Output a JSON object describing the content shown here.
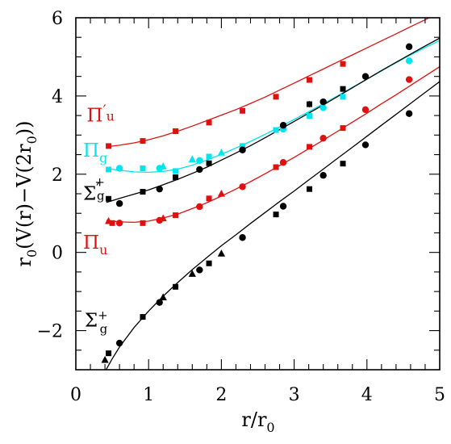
{
  "chart_data": {
    "type": "scatter",
    "title": "",
    "xlabel": {
      "main": "r/r",
      "sub": "0"
    },
    "ylabel": {
      "prefix": "r",
      "prefix_sub": "0",
      "body": "(V(r)−V(2r",
      "body_sub": "0",
      "suffix": "))"
    },
    "xlim": [
      0,
      5
    ],
    "ylim": [
      -3,
      6
    ],
    "xticks": [
      "0",
      "1",
      "2",
      "3",
      "4",
      "5"
    ],
    "yticks": [
      "−2",
      "0",
      "2",
      "4",
      "6"
    ],
    "grid": false,
    "legend": "none",
    "series": [
      {
        "label": {
          "main": "Π",
          "sub": "u",
          "prime": "′"
        },
        "color": "#e01010",
        "curve": [
          [
            0.42,
            2.7
          ],
          [
            0.6,
            2.74
          ],
          [
            0.8,
            2.8
          ],
          [
            1.0,
            2.88
          ],
          [
            1.2,
            2.98
          ],
          [
            1.4,
            3.1
          ],
          [
            1.6,
            3.23
          ],
          [
            1.8,
            3.37
          ],
          [
            2.0,
            3.51
          ],
          [
            2.2,
            3.65
          ],
          [
            2.4,
            3.81
          ],
          [
            2.6,
            3.97
          ],
          [
            2.8,
            4.15
          ],
          [
            3.0,
            4.33
          ],
          [
            3.2,
            4.51
          ],
          [
            3.4,
            4.69
          ],
          [
            3.6,
            4.87
          ],
          [
            3.8,
            5.05
          ],
          [
            4.0,
            5.23
          ],
          [
            4.2,
            5.41
          ],
          [
            4.4,
            5.59
          ],
          [
            4.6,
            5.77
          ],
          [
            4.8,
            5.95
          ],
          [
            5.0,
            6.13
          ]
        ],
        "points": [
          {
            "x": 0.45,
            "y": 2.72,
            "m": "square"
          },
          {
            "x": 0.92,
            "y": 2.85,
            "m": "square"
          },
          {
            "x": 1.37,
            "y": 3.1,
            "m": "square"
          },
          {
            "x": 1.83,
            "y": 3.32,
            "m": "square"
          },
          {
            "x": 2.29,
            "y": 3.62,
            "m": "square"
          },
          {
            "x": 2.75,
            "y": 3.98,
            "m": "square"
          },
          {
            "x": 3.21,
            "y": 4.41,
            "m": "square"
          },
          {
            "x": 3.67,
            "y": 4.82,
            "m": "square"
          }
        ]
      },
      {
        "label": {
          "main": "Π",
          "sub": "g",
          "prime": ""
        },
        "color": "#00e5ee",
        "curve": [
          [
            0.42,
            2.15
          ],
          [
            0.6,
            2.1
          ],
          [
            0.8,
            2.06
          ],
          [
            1.0,
            2.05
          ],
          [
            1.2,
            2.07
          ],
          [
            1.4,
            2.13
          ],
          [
            1.6,
            2.23
          ],
          [
            1.8,
            2.36
          ],
          [
            2.0,
            2.51
          ],
          [
            2.2,
            2.67
          ],
          [
            2.4,
            2.84
          ],
          [
            2.6,
            3.02
          ],
          [
            2.8,
            3.21
          ],
          [
            3.0,
            3.4
          ],
          [
            3.2,
            3.6
          ],
          [
            3.4,
            3.8
          ],
          [
            3.6,
            4.01
          ],
          [
            3.8,
            4.22
          ],
          [
            4.0,
            4.43
          ],
          [
            4.2,
            4.64
          ],
          [
            4.4,
            4.85
          ],
          [
            4.6,
            5.05
          ],
          [
            4.8,
            5.24
          ],
          [
            5.0,
            5.42
          ]
        ],
        "points": [
          {
            "x": 0.45,
            "y": 2.12,
            "m": "square"
          },
          {
            "x": 0.6,
            "y": 2.15,
            "m": "circle"
          },
          {
            "x": 0.92,
            "y": 2.15,
            "m": "square"
          },
          {
            "x": 1.15,
            "y": 2.15,
            "m": "circle"
          },
          {
            "x": 1.2,
            "y": 2.2,
            "m": "triangle"
          },
          {
            "x": 1.37,
            "y": 2.08,
            "m": "square"
          },
          {
            "x": 1.6,
            "y": 2.38,
            "m": "triangle"
          },
          {
            "x": 1.7,
            "y": 2.35,
            "m": "circle"
          },
          {
            "x": 1.83,
            "y": 2.45,
            "m": "square"
          },
          {
            "x": 2.0,
            "y": 2.55,
            "m": "triangle"
          },
          {
            "x": 2.29,
            "y": 2.72,
            "m": "square"
          },
          {
            "x": 2.75,
            "y": 3.13,
            "m": "square"
          },
          {
            "x": 2.85,
            "y": 3.15,
            "m": "circle"
          },
          {
            "x": 3.21,
            "y": 3.49,
            "m": "square"
          },
          {
            "x": 3.4,
            "y": 3.7,
            "m": "circle"
          },
          {
            "x": 3.67,
            "y": 3.98,
            "m": "square"
          },
          {
            "x": 4.58,
            "y": 4.9,
            "m": "circle"
          }
        ]
      },
      {
        "label": {
          "main": "Σ",
          "sub": "g",
          "prime": "′",
          "sup": "+"
        },
        "color": "#000000",
        "curve": [
          [
            0.42,
            1.28
          ],
          [
            0.6,
            1.38
          ],
          [
            0.8,
            1.49
          ],
          [
            1.0,
            1.6
          ],
          [
            1.2,
            1.73
          ],
          [
            1.4,
            1.87
          ],
          [
            1.6,
            2.02
          ],
          [
            1.8,
            2.18
          ],
          [
            2.0,
            2.36
          ],
          [
            2.2,
            2.54
          ],
          [
            2.4,
            2.73
          ],
          [
            2.6,
            2.93
          ],
          [
            2.8,
            3.14
          ],
          [
            3.0,
            3.35
          ],
          [
            3.2,
            3.56
          ],
          [
            3.4,
            3.77
          ],
          [
            3.6,
            3.99
          ],
          [
            3.8,
            4.21
          ],
          [
            4.0,
            4.43
          ],
          [
            4.2,
            4.65
          ],
          [
            4.4,
            4.86
          ],
          [
            4.6,
            5.07
          ],
          [
            4.8,
            5.28
          ],
          [
            5.0,
            5.48
          ]
        ],
        "points": [
          {
            "x": 0.45,
            "y": 1.37,
            "m": "square"
          },
          {
            "x": 0.6,
            "y": 1.25,
            "m": "circle"
          },
          {
            "x": 0.92,
            "y": 1.55,
            "m": "square"
          },
          {
            "x": 1.15,
            "y": 1.62,
            "m": "circle"
          },
          {
            "x": 1.37,
            "y": 1.92,
            "m": "square"
          },
          {
            "x": 1.7,
            "y": 2.12,
            "m": "circle"
          },
          {
            "x": 1.83,
            "y": 2.28,
            "m": "square"
          },
          {
            "x": 2.29,
            "y": 2.62,
            "m": "circle"
          },
          {
            "x": 2.85,
            "y": 3.25,
            "m": "circle"
          },
          {
            "x": 3.21,
            "y": 3.79,
            "m": "square"
          },
          {
            "x": 3.4,
            "y": 3.85,
            "m": "circle"
          },
          {
            "x": 3.67,
            "y": 4.18,
            "m": "square"
          },
          {
            "x": 3.98,
            "y": 4.5,
            "m": "circle"
          },
          {
            "x": 4.58,
            "y": 5.26,
            "m": "circle"
          }
        ]
      },
      {
        "label": {
          "main": "Π",
          "sub": "u",
          "prime": ""
        },
        "color": "#e01010",
        "curve": [
          [
            0.42,
            0.82
          ],
          [
            0.6,
            0.78
          ],
          [
            0.8,
            0.77
          ],
          [
            1.0,
            0.8
          ],
          [
            1.2,
            0.88
          ],
          [
            1.4,
            0.98
          ],
          [
            1.6,
            1.12
          ],
          [
            1.8,
            1.27
          ],
          [
            2.0,
            1.44
          ],
          [
            2.2,
            1.62
          ],
          [
            2.4,
            1.81
          ],
          [
            2.6,
            2.01
          ],
          [
            2.8,
            2.22
          ],
          [
            3.0,
            2.43
          ],
          [
            3.2,
            2.65
          ],
          [
            3.4,
            2.87
          ],
          [
            3.6,
            3.1
          ],
          [
            3.8,
            3.33
          ],
          [
            4.0,
            3.56
          ],
          [
            4.2,
            3.8
          ],
          [
            4.4,
            4.03
          ],
          [
            4.6,
            4.27
          ],
          [
            4.8,
            4.51
          ],
          [
            5.0,
            4.75
          ]
        ],
        "points": [
          {
            "x": 0.45,
            "y": 0.8,
            "m": "triangle"
          },
          {
            "x": 0.5,
            "y": 0.75,
            "m": "square"
          },
          {
            "x": 0.6,
            "y": 0.75,
            "m": "circle"
          },
          {
            "x": 0.92,
            "y": 0.75,
            "m": "square"
          },
          {
            "x": 1.15,
            "y": 0.82,
            "m": "circle"
          },
          {
            "x": 1.2,
            "y": 0.87,
            "m": "triangle"
          },
          {
            "x": 1.37,
            "y": 0.95,
            "m": "square"
          },
          {
            "x": 1.7,
            "y": 1.17,
            "m": "circle"
          },
          {
            "x": 1.83,
            "y": 1.38,
            "m": "square"
          },
          {
            "x": 2.0,
            "y": 1.5,
            "m": "triangle"
          },
          {
            "x": 2.29,
            "y": 1.68,
            "m": "circle"
          },
          {
            "x": 2.75,
            "y": 2.18,
            "m": "square"
          },
          {
            "x": 2.85,
            "y": 2.3,
            "m": "circle"
          },
          {
            "x": 3.21,
            "y": 2.7,
            "m": "square"
          },
          {
            "x": 3.4,
            "y": 2.92,
            "m": "circle"
          },
          {
            "x": 3.67,
            "y": 3.18,
            "m": "square"
          },
          {
            "x": 3.98,
            "y": 3.65,
            "m": "circle"
          },
          {
            "x": 4.58,
            "y": 4.42,
            "m": "circle"
          }
        ]
      },
      {
        "label": {
          "main": "Σ",
          "sub": "g",
          "prime": "",
          "sup": "+"
        },
        "color": "#000000",
        "curve": [
          [
            0.4,
            -3.05
          ],
          [
            0.5,
            -2.72
          ],
          [
            0.6,
            -2.42
          ],
          [
            0.8,
            -1.92
          ],
          [
            1.0,
            -1.5
          ],
          [
            1.2,
            -1.12
          ],
          [
            1.4,
            -0.77
          ],
          [
            1.6,
            -0.44
          ],
          [
            1.8,
            -0.13
          ],
          [
            2.0,
            0.17
          ],
          [
            2.2,
            0.45
          ],
          [
            2.4,
            0.74
          ],
          [
            2.6,
            1.02
          ],
          [
            2.8,
            1.3
          ],
          [
            3.0,
            1.57
          ],
          [
            3.2,
            1.85
          ],
          [
            3.4,
            2.13
          ],
          [
            3.6,
            2.41
          ],
          [
            3.8,
            2.69
          ],
          [
            4.0,
            2.97
          ],
          [
            4.2,
            3.25
          ],
          [
            4.4,
            3.53
          ],
          [
            4.6,
            3.81
          ],
          [
            4.8,
            4.09
          ],
          [
            5.0,
            4.37
          ]
        ],
        "points": [
          {
            "x": 0.4,
            "y": -2.75,
            "m": "triangle"
          },
          {
            "x": 0.45,
            "y": -2.58,
            "m": "square"
          },
          {
            "x": 0.6,
            "y": -2.32,
            "m": "circle"
          },
          {
            "x": 0.92,
            "y": -1.65,
            "m": "square"
          },
          {
            "x": 1.15,
            "y": -1.28,
            "m": "circle"
          },
          {
            "x": 1.2,
            "y": -1.15,
            "m": "triangle"
          },
          {
            "x": 1.37,
            "y": -0.88,
            "m": "square"
          },
          {
            "x": 1.6,
            "y": -0.55,
            "m": "triangle"
          },
          {
            "x": 1.7,
            "y": -0.45,
            "m": "circle"
          },
          {
            "x": 1.83,
            "y": -0.28,
            "m": "square"
          },
          {
            "x": 2.0,
            "y": -0.03,
            "m": "triangle"
          },
          {
            "x": 2.29,
            "y": 0.38,
            "m": "circle"
          },
          {
            "x": 2.75,
            "y": 0.97,
            "m": "square"
          },
          {
            "x": 2.85,
            "y": 1.18,
            "m": "circle"
          },
          {
            "x": 3.21,
            "y": 1.62,
            "m": "square"
          },
          {
            "x": 3.4,
            "y": 1.97,
            "m": "circle"
          },
          {
            "x": 3.67,
            "y": 2.27,
            "m": "square"
          },
          {
            "x": 3.98,
            "y": 2.75,
            "m": "circle"
          },
          {
            "x": 4.58,
            "y": 3.55,
            "m": "circle"
          }
        ]
      }
    ],
    "series_label_anchors": [
      {
        "x": 0.15,
        "y": 3.35
      },
      {
        "x": 0.1,
        "y": 2.45
      },
      {
        "x": 0.1,
        "y": 1.35
      },
      {
        "x": 0.1,
        "y": 0.1
      },
      {
        "x": 0.12,
        "y": -1.9
      }
    ],
    "error_bar": {
      "x": 3.21,
      "y": 3.79,
      "dy": 0.08
    }
  }
}
